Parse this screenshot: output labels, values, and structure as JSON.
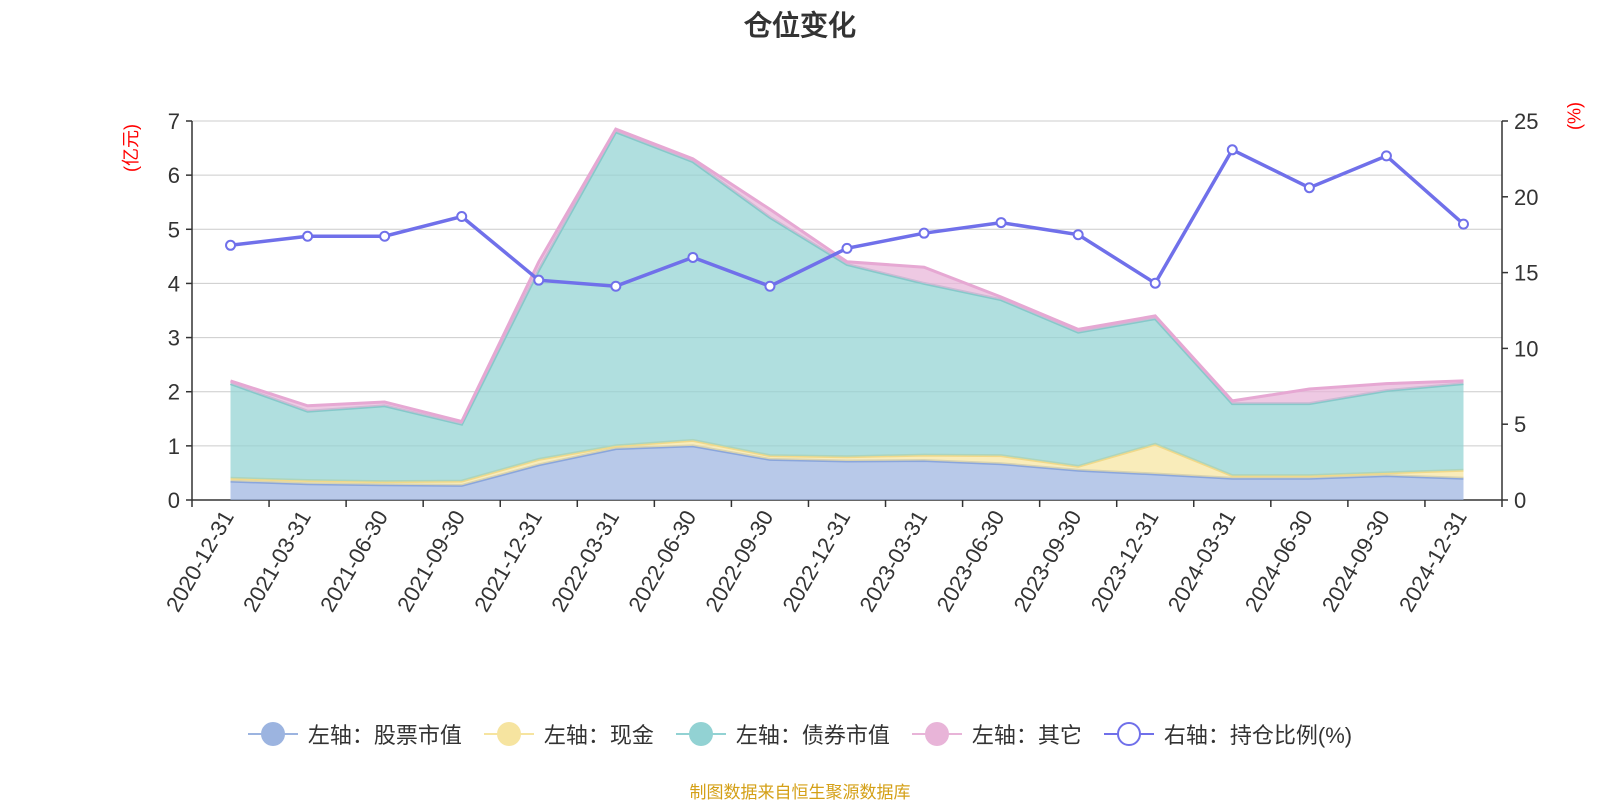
{
  "chart_data": {
    "type": "area",
    "title": "仓位变化",
    "y_left_unit": "(亿元)",
    "y_right_unit": "(%)",
    "ylim_left": [
      0,
      7
    ],
    "ylim_right": [
      0,
      25
    ],
    "y_left_ticks": [
      "0",
      "1",
      "2",
      "3",
      "4",
      "5",
      "6",
      "7"
    ],
    "y_right_ticks": [
      "0",
      "5",
      "10",
      "15",
      "20",
      "25"
    ],
    "categories": [
      "2020-12-31",
      "2021-03-31",
      "2021-06-30",
      "2021-09-30",
      "2021-12-31",
      "2022-03-31",
      "2022-06-30",
      "2022-09-30",
      "2022-12-31",
      "2023-03-31",
      "2023-06-30",
      "2023-09-30",
      "2023-12-31",
      "2024-03-31",
      "2024-06-30",
      "2024-09-30",
      "2024-12-31"
    ],
    "stacked_series": [
      {
        "name": "左轴：股票市值",
        "axis": "left",
        "color": "#9cb4e0",
        "values": [
          0.35,
          0.3,
          0.28,
          0.27,
          0.65,
          0.95,
          1.0,
          0.75,
          0.72,
          0.73,
          0.67,
          0.55,
          0.48,
          0.4,
          0.4,
          0.45,
          0.4
        ]
      },
      {
        "name": "左轴：现金",
        "axis": "left",
        "color": "#f6e4a0",
        "values": [
          0.05,
          0.06,
          0.06,
          0.08,
          0.1,
          0.05,
          0.1,
          0.07,
          0.08,
          0.1,
          0.15,
          0.07,
          0.55,
          0.05,
          0.05,
          0.05,
          0.15
        ]
      },
      {
        "name": "左轴：债券市值",
        "axis": "left",
        "color": "#92d2d3",
        "values": [
          1.75,
          1.28,
          1.4,
          1.05,
          3.5,
          5.8,
          5.15,
          4.4,
          3.55,
          3.17,
          2.88,
          2.48,
          2.32,
          1.33,
          1.33,
          1.52,
          1.6
        ]
      },
      {
        "name": "左轴：其它",
        "axis": "left",
        "color": "#e8b4d8",
        "values": [
          0.05,
          0.1,
          0.07,
          0.05,
          0.15,
          0.05,
          0.05,
          0.15,
          0.05,
          0.3,
          0.05,
          0.05,
          0.05,
          0.05,
          0.27,
          0.13,
          0.05
        ]
      }
    ],
    "line_series": {
      "name": "右轴：持仓比例(%)",
      "axis": "right",
      "color": "#7070ea",
      "values": [
        16.8,
        17.4,
        17.4,
        18.7,
        14.5,
        14.1,
        16.0,
        14.1,
        16.6,
        17.6,
        18.3,
        17.5,
        14.3,
        23.1,
        20.6,
        22.7,
        18.2
      ]
    }
  },
  "legend": [
    {
      "label": "左轴：股票市值",
      "color": "#9cb4e0",
      "hollow": false
    },
    {
      "label": "左轴：现金",
      "color": "#f6e4a0",
      "hollow": false
    },
    {
      "label": "左轴：债券市值",
      "color": "#92d2d3",
      "hollow": false
    },
    {
      "label": "左轴：其它",
      "color": "#e8b4d8",
      "hollow": false
    },
    {
      "label": "右轴：持仓比例(%)",
      "color": "#7070ea",
      "hollow": true
    }
  ],
  "source": "制图数据来自恒生聚源数据库"
}
